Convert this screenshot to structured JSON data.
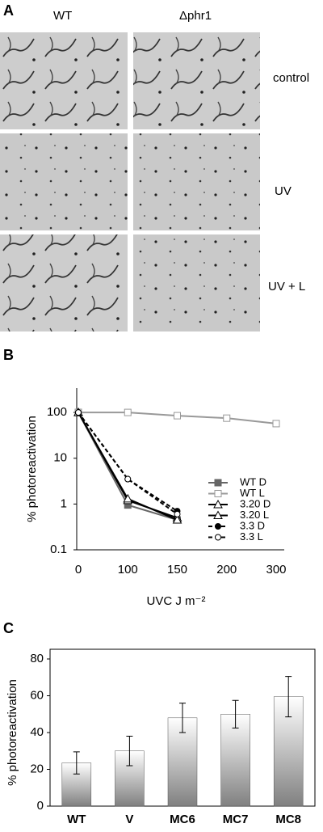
{
  "panels": {
    "a": {
      "label": "A",
      "columns": [
        "WT",
        "Δphr1"
      ],
      "rows": [
        "control",
        "UV",
        "UV + L"
      ]
    },
    "b": {
      "label": "B"
    },
    "c": {
      "label": "C"
    }
  },
  "chart_data": [
    {
      "type": "line",
      "ylabel": "% photoreactivation",
      "xlabel": "UVC J m⁻²",
      "categories": [
        "0",
        "100",
        "150",
        "200",
        "300"
      ],
      "log_y": true,
      "ylim": [
        0.1,
        340
      ],
      "yticks": [
        0.1,
        1,
        10,
        100
      ],
      "series": [
        {
          "name": "WT D",
          "color": "#666666",
          "marker": "square-filled",
          "dash": false,
          "values": [
            100,
            0.95,
            0.45,
            null,
            null
          ]
        },
        {
          "name": "WT L",
          "color": "#999999",
          "marker": "square-open",
          "dash": false,
          "values": [
            100,
            100,
            85,
            75,
            57
          ]
        },
        {
          "name": "3.20 D",
          "color": "#000000",
          "marker": "triangle-open",
          "dash": false,
          "values": [
            100,
            1.2,
            0.5,
            null,
            null
          ]
        },
        {
          "name": "3.20 L",
          "color": "#000000",
          "marker": "triangle-open",
          "dash": false,
          "values": [
            100,
            1.3,
            0.45,
            null,
            null
          ]
        },
        {
          "name": "3.3 D",
          "color": "#000000",
          "marker": "circle-filled",
          "dash": true,
          "values": [
            100,
            3.5,
            0.7,
            null,
            null
          ]
        },
        {
          "name": "3.3 L",
          "color": "#000000",
          "marker": "circle-open",
          "dash": true,
          "values": [
            100,
            3.5,
            0.6,
            null,
            null
          ]
        }
      ]
    },
    {
      "type": "bar",
      "ylabel": "% photoreactivation",
      "categories": [
        "WT",
        "V",
        "MC6",
        "MC7",
        "MC8"
      ],
      "values": [
        23.5,
        30,
        48,
        50,
        59.5
      ],
      "errors": [
        6,
        8,
        8,
        7.5,
        11
      ],
      "ylim": [
        0,
        80
      ],
      "yticks": [
        0,
        20,
        40,
        60,
        80
      ]
    }
  ]
}
